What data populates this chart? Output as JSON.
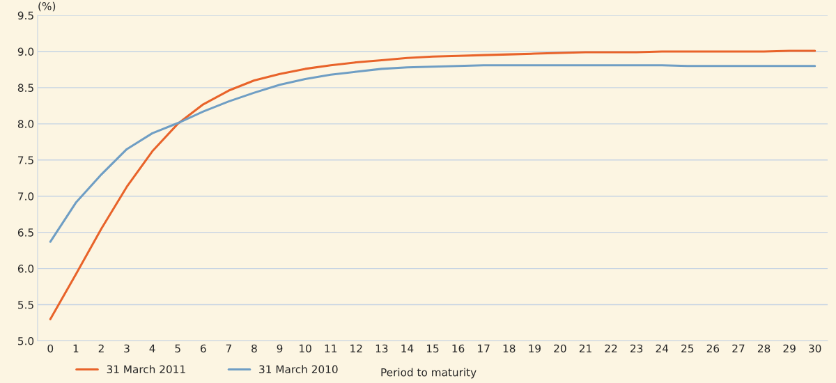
{
  "chart_data": {
    "type": "line",
    "ylabel": "(%)",
    "xlabel": "Period to maturity",
    "categories": [
      "0",
      "1",
      "2",
      "3",
      "4",
      "5",
      "6",
      "7",
      "8",
      "9",
      "10",
      "11",
      "12",
      "13",
      "14",
      "15",
      "16",
      "17",
      "18",
      "19",
      "20",
      "21",
      "22",
      "23",
      "24",
      "25",
      "26",
      "27",
      "28",
      "29",
      "30"
    ],
    "series": [
      {
        "name": "31 March 2011",
        "color": "#e8632a",
        "values": [
          5.3,
          5.92,
          6.55,
          7.13,
          7.62,
          8.0,
          8.27,
          8.46,
          8.6,
          8.69,
          8.76,
          8.81,
          8.85,
          8.88,
          8.91,
          8.93,
          8.94,
          8.95,
          8.96,
          8.97,
          8.98,
          8.99,
          8.99,
          8.99,
          9.0,
          9.0,
          9.0,
          9.0,
          9.0,
          9.01,
          9.01
        ]
      },
      {
        "name": "31 March 2010",
        "color": "#6f9ec4",
        "values": [
          6.37,
          6.91,
          7.3,
          7.65,
          7.87,
          8.01,
          8.17,
          8.31,
          8.43,
          8.54,
          8.62,
          8.68,
          8.72,
          8.76,
          8.78,
          8.79,
          8.8,
          8.81,
          8.81,
          8.81,
          8.81,
          8.81,
          8.81,
          8.81,
          8.81,
          8.8,
          8.8,
          8.8,
          8.8,
          8.8,
          8.8
        ]
      }
    ],
    "ylim": [
      5.0,
      9.5
    ],
    "yticks": [
      {
        "value": 5.0,
        "label": "5.0"
      },
      {
        "value": 5.5,
        "label": "5.5"
      },
      {
        "value": 6.0,
        "label": "6.0"
      },
      {
        "value": 6.5,
        "label": "6.5"
      },
      {
        "value": 7.0,
        "label": "7.0"
      },
      {
        "value": 7.5,
        "label": "7.5"
      },
      {
        "value": 8.0,
        "label": "8.0"
      },
      {
        "value": 8.5,
        "label": "8.5"
      },
      {
        "value": 9.0,
        "label": "9.0"
      },
      {
        "value": 9.5,
        "label": "9.5"
      }
    ],
    "grid": "y",
    "legend": "bottom",
    "marker": "none",
    "line_style": "solid"
  }
}
